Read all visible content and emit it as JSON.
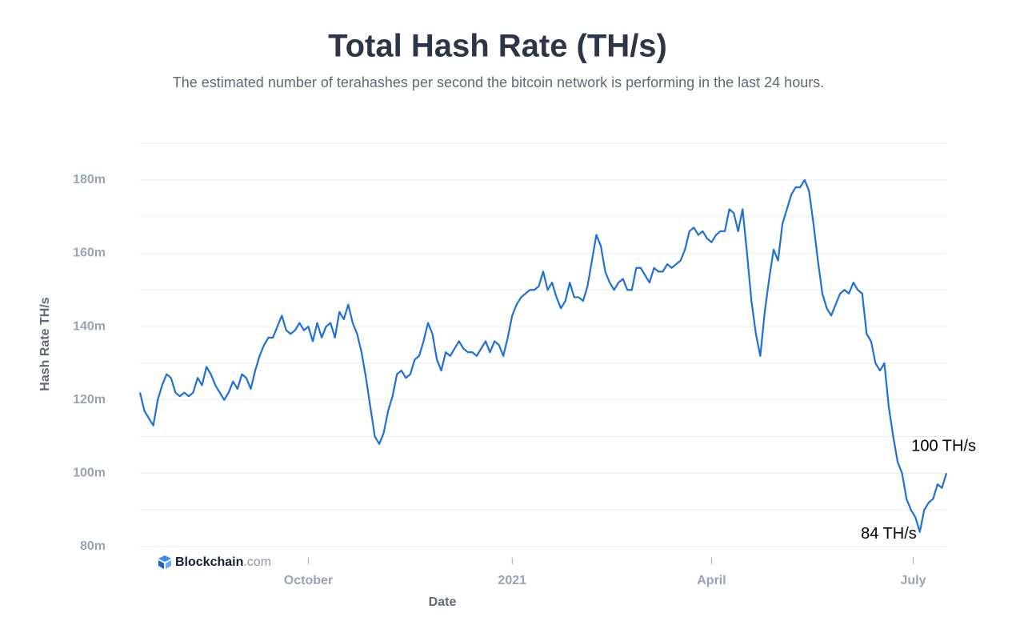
{
  "chart_data": {
    "type": "line",
    "title": "Total Hash Rate (TH/s)",
    "subtitle": "The estimated number of terahashes per second the bitcoin network is performing in the last 24 hours.",
    "x_label": "Date",
    "y_label": "Hash Rate TH/s",
    "brand": {
      "name": "Blockchain",
      "suffix": ".com"
    },
    "xlim": [
      0,
      364
    ],
    "xticks": [
      {
        "value": 76,
        "label": "October"
      },
      {
        "value": 168,
        "label": "2021"
      },
      {
        "value": 258,
        "label": "April"
      },
      {
        "value": 349,
        "label": "July"
      }
    ],
    "ylim": [
      80,
      190
    ],
    "yticks": [
      {
        "value": 80,
        "label": "80m"
      },
      {
        "value": 100,
        "label": "100m"
      },
      {
        "value": 120,
        "label": "120m"
      },
      {
        "value": 140,
        "label": "140m"
      },
      {
        "value": 160,
        "label": "160m"
      },
      {
        "value": 180,
        "label": "180m"
      }
    ],
    "minor_gridlines": [
      90,
      110,
      130,
      150,
      170,
      190
    ],
    "grid": true,
    "annotations": [
      {
        "text": "84 TH/s",
        "value": 84
      },
      {
        "text": "100 TH/s",
        "value": 100
      }
    ],
    "x": [
      0,
      2,
      4,
      6,
      8,
      10,
      12,
      14,
      16,
      18,
      20,
      22,
      24,
      26,
      28,
      30,
      32,
      34,
      36,
      38,
      40,
      42,
      44,
      46,
      48,
      50,
      52,
      54,
      56,
      58,
      60,
      62,
      64,
      66,
      68,
      70,
      72,
      74,
      76,
      78,
      80,
      82,
      84,
      86,
      88,
      90,
      92,
      94,
      96,
      98,
      100,
      102,
      104,
      106,
      108,
      110,
      112,
      114,
      116,
      118,
      120,
      122,
      124,
      126,
      128,
      130,
      132,
      134,
      136,
      138,
      140,
      142,
      144,
      146,
      148,
      150,
      152,
      154,
      156,
      158,
      160,
      162,
      164,
      166,
      168,
      170,
      172,
      174,
      176,
      178,
      180,
      182,
      184,
      186,
      188,
      190,
      192,
      194,
      196,
      198,
      200,
      202,
      204,
      206,
      208,
      210,
      212,
      214,
      216,
      218,
      220,
      222,
      224,
      226,
      228,
      230,
      232,
      234,
      236,
      238,
      240,
      242,
      244,
      246,
      248,
      250,
      252,
      254,
      256,
      258,
      260,
      262,
      264,
      266,
      268,
      270,
      272,
      274,
      276,
      278,
      280,
      282,
      284,
      286,
      288,
      290,
      292,
      294,
      296,
      298,
      300,
      302,
      304,
      306,
      308,
      310,
      312,
      314,
      316,
      318,
      320,
      322,
      324,
      326,
      328,
      330,
      332,
      334,
      336,
      338,
      340,
      342,
      344,
      346,
      348,
      350,
      352,
      354,
      356,
      358,
      360,
      362,
      364
    ],
    "series": [
      {
        "name": "Hash Rate",
        "color": "#1f6fd8",
        "values": [
          122,
          117,
          115,
          113,
          120,
          124,
          127,
          126,
          122,
          121,
          122,
          121,
          122,
          126,
          124,
          129,
          127,
          124,
          122,
          120,
          122,
          125,
          123,
          127,
          126,
          123,
          128,
          132,
          135,
          137,
          137,
          140,
          143,
          139,
          138,
          139,
          141,
          139,
          140,
          136,
          141,
          137,
          140,
          141,
          137,
          144,
          142,
          146,
          141,
          138,
          133,
          126,
          118,
          110,
          108,
          111,
          117,
          121,
          127,
          128,
          126,
          127,
          131,
          132,
          136,
          141,
          138,
          131,
          128,
          133,
          132,
          134,
          136,
          134,
          133,
          133,
          132,
          134,
          136,
          133,
          136,
          135,
          132,
          137,
          143,
          146,
          148,
          149,
          150,
          150,
          151,
          155,
          150,
          152,
          148,
          145,
          147,
          152,
          148,
          148,
          147,
          151,
          158,
          165,
          162,
          155,
          152,
          150,
          152,
          153,
          150,
          150,
          156,
          156,
          154,
          152,
          156,
          155,
          155,
          157,
          156,
          157,
          158,
          161,
          166,
          167,
          165,
          166,
          164,
          163,
          165,
          166,
          166,
          172,
          171,
          166,
          172,
          160,
          147,
          138,
          132,
          144,
          153,
          161,
          158,
          168,
          172,
          176,
          178,
          178,
          180,
          177,
          168,
          158,
          149,
          145,
          143,
          146,
          149,
          150,
          149,
          152,
          150,
          149,
          138,
          136,
          130,
          128,
          130,
          118,
          110,
          103,
          100,
          93,
          90,
          88,
          84,
          90,
          92,
          93,
          97,
          96,
          100
        ]
      }
    ]
  }
}
